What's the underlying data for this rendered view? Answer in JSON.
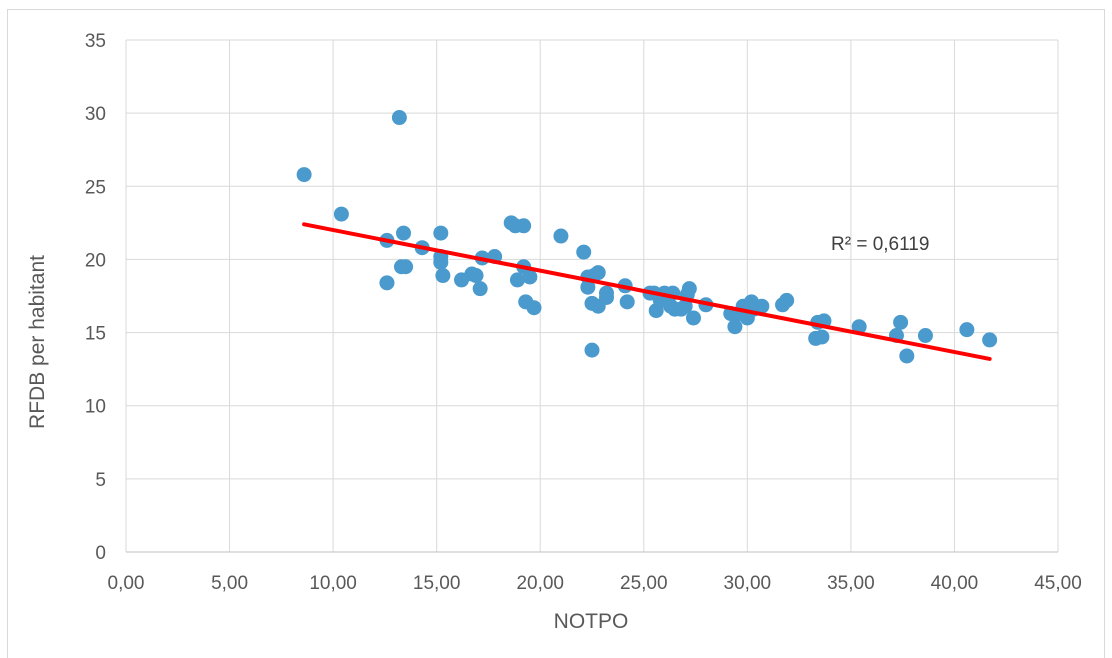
{
  "chart_data": {
    "type": "scatter",
    "title": "",
    "xlabel": "NOTPO",
    "ylabel": "RFDB per habitant",
    "xlim": [
      0,
      45
    ],
    "ylim": [
      0,
      35
    ],
    "x_ticks": [
      "0,00",
      "5,00",
      "10,00",
      "15,00",
      "20,00",
      "25,00",
      "30,00",
      "35,00",
      "40,00",
      "45,00"
    ],
    "y_ticks": [
      "0",
      "5",
      "10",
      "15",
      "20",
      "25",
      "30",
      "35"
    ],
    "grid": true,
    "legend": "none",
    "series": [
      {
        "color": "#4a9acd",
        "points": [
          [
            8.6,
            25.8
          ],
          [
            10.4,
            23.1
          ],
          [
            12.6,
            21.3
          ],
          [
            12.6,
            18.4
          ],
          [
            13.2,
            29.7
          ],
          [
            13.4,
            21.8
          ],
          [
            13.3,
            19.5
          ],
          [
            13.5,
            19.5
          ],
          [
            14.3,
            20.8
          ],
          [
            15.2,
            21.8
          ],
          [
            15.2,
            20.2
          ],
          [
            15.2,
            19.8
          ],
          [
            15.3,
            18.9
          ],
          [
            16.2,
            18.6
          ],
          [
            16.7,
            19.0
          ],
          [
            16.9,
            18.9
          ],
          [
            17.1,
            18.0
          ],
          [
            17.2,
            20.1
          ],
          [
            17.8,
            20.2
          ],
          [
            18.6,
            22.5
          ],
          [
            18.8,
            22.3
          ],
          [
            18.9,
            18.6
          ],
          [
            19.2,
            22.3
          ],
          [
            19.2,
            19.5
          ],
          [
            19.3,
            17.1
          ],
          [
            19.5,
            18.8
          ],
          [
            19.7,
            16.7
          ],
          [
            21.0,
            21.6
          ],
          [
            22.1,
            20.5
          ],
          [
            22.3,
            18.8
          ],
          [
            22.3,
            18.1
          ],
          [
            22.5,
            17.0
          ],
          [
            22.6,
            18.9
          ],
          [
            22.5,
            13.8
          ],
          [
            22.8,
            19.1
          ],
          [
            22.8,
            16.8
          ],
          [
            23.2,
            17.7
          ],
          [
            23.2,
            17.4
          ],
          [
            24.1,
            18.2
          ],
          [
            24.2,
            17.1
          ],
          [
            25.3,
            17.7
          ],
          [
            25.5,
            17.7
          ],
          [
            25.6,
            16.5
          ],
          [
            25.8,
            17.2
          ],
          [
            26.0,
            17.7
          ],
          [
            26.3,
            16.8
          ],
          [
            26.4,
            17.7
          ],
          [
            26.5,
            16.6
          ],
          [
            26.8,
            16.6
          ],
          [
            27.0,
            16.8
          ],
          [
            27.1,
            17.6
          ],
          [
            27.2,
            18.0
          ],
          [
            27.4,
            16.0
          ],
          [
            28.0,
            16.9
          ],
          [
            29.2,
            16.3
          ],
          [
            29.4,
            15.4
          ],
          [
            29.6,
            16.3
          ],
          [
            29.8,
            16.8
          ],
          [
            30.0,
            16.0
          ],
          [
            30.2,
            17.1
          ],
          [
            30.3,
            16.6
          ],
          [
            30.7,
            16.8
          ],
          [
            31.7,
            16.9
          ],
          [
            31.9,
            17.2
          ],
          [
            33.3,
            14.6
          ],
          [
            33.4,
            15.7
          ],
          [
            33.6,
            14.7
          ],
          [
            33.7,
            15.8
          ],
          [
            35.4,
            15.4
          ],
          [
            37.2,
            14.8
          ],
          [
            37.4,
            15.7
          ],
          [
            37.7,
            13.4
          ],
          [
            38.6,
            14.8
          ],
          [
            40.6,
            15.2
          ],
          [
            41.7,
            14.5
          ]
        ]
      }
    ],
    "trendline": {
      "color": "#ff0000",
      "x0": 8.6,
      "y0": 22.4,
      "x1": 41.7,
      "y1": 13.2
    },
    "annotation": "R² = 0,6119"
  }
}
